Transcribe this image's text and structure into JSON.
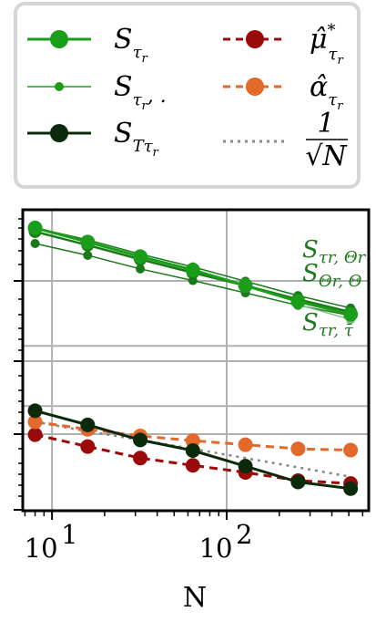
{
  "chart_data": {
    "type": "line",
    "xlabel": "N",
    "x_scale": "log",
    "y_scale": "log",
    "xlim": [
      6.8,
      650
    ],
    "x_ticks": [
      10,
      100
    ],
    "x_tick_labels": [
      "10",
      "1",
      "10",
      "2"
    ],
    "grid": true,
    "legend_position": "top",
    "x": [
      8,
      16,
      32,
      64,
      128,
      256,
      512
    ],
    "series": [
      {
        "name": "S_{τ_r}",
        "color": "#1a9e1a",
        "style": "solid",
        "marker": "large",
        "values": [
          0.06,
          0.035,
          0.02,
          0.012,
          0.0066,
          0.0036,
          0.0022
        ]
      },
      {
        "name": "S_{τ_r, .}",
        "color": "#1a9e1a",
        "style": "solid-thin",
        "marker": "small",
        "values": null
      },
      {
        "name": "S_{Tτ_r}",
        "color": "#0b2a0b",
        "style": "solid",
        "marker": "large",
        "values": [
          5.5e-05,
          3.2e-05,
          1.8e-05,
          1.2e-05,
          6.6e-06,
          3.6e-06,
          2.8e-06
        ]
      },
      {
        "name": "μ̂*_{τ_r}",
        "color": "#9b0a0a",
        "style": "dashed",
        "marker": "large",
        "values": [
          2.2e-05,
          1.4e-05,
          9e-06,
          6.8e-06,
          5.2e-06,
          3.8e-06,
          3.4e-06
        ]
      },
      {
        "name": "α̂_{τ_r}",
        "color": "#e2692a",
        "style": "dashed",
        "marker": "large",
        "values": [
          3.6e-05,
          2.7e-05,
          2.1e-05,
          1.75e-05,
          1.5e-05,
          1.28e-05,
          1.22e-05
        ]
      },
      {
        "name": "1/√N",
        "color": "#888888",
        "style": "dotted",
        "marker": "none",
        "values": [
          3.6e-05,
          2.5e-05,
          1.8e-05,
          1.28e-05,
          9e-06,
          6.3e-06,
          4.4e-06
        ]
      }
    ],
    "extra_series": [
      {
        "label": "S_{τ_r, Θ_r}",
        "color": "#1a7a1a",
        "style": "solid",
        "marker": "medium",
        "values": [
          0.052,
          0.031,
          0.018,
          0.0108,
          0.0066,
          0.0039,
          0.0024
        ]
      },
      {
        "label": "S_{Θ_r, Θ}",
        "color": "#1a7a1a",
        "style": "solid-thin",
        "marker": "small",
        "values": [
          0.06,
          0.038,
          0.022,
          0.0135,
          0.0078,
          0.0045,
          0.0028
        ]
      },
      {
        "label": "S_{τ_r, τ̄}",
        "color": "#1a7a1a",
        "style": "solid-thin",
        "marker": "small",
        "values": [
          0.033,
          0.021,
          0.0125,
          0.008,
          0.005,
          0.0031,
          0.0021
        ]
      },
      {
        "label": "",
        "color": "#7fbf7f",
        "style": "solid-thin",
        "marker": "small",
        "values": [
          null,
          null,
          null,
          null,
          null,
          0.0032,
          0.0018
        ]
      }
    ],
    "annotations": [
      {
        "text": "S",
        "sub": "τr, Θr",
        "color": "#1c7a1c"
      },
      {
        "text": "S",
        "sub": "Θr, Θ",
        "color": "#1c7a1c"
      },
      {
        "text": "S",
        "sub": "τr, τ̄",
        "color": "#1c7a1c"
      }
    ]
  },
  "legend": {
    "items": [
      {
        "symbol": "S",
        "sub": "τ",
        "subsub": "r",
        "suffix": ""
      },
      {
        "symbol": "S",
        "sub": "τ",
        "subsub": "r",
        "suffix": ", ."
      },
      {
        "symbol": "S",
        "sub": "Tτ",
        "subsub": "r",
        "suffix": ""
      },
      {
        "symbol": "μ̂",
        "sub": "τ",
        "subsub": "r",
        "suffix": "",
        "sup": "*"
      },
      {
        "symbol": "α̂",
        "sub": "τ",
        "subsub": "r",
        "suffix": ""
      },
      {
        "symbol": "1",
        "sub": "",
        "subsub": "",
        "suffix": "",
        "frac_den": "√N"
      }
    ]
  }
}
